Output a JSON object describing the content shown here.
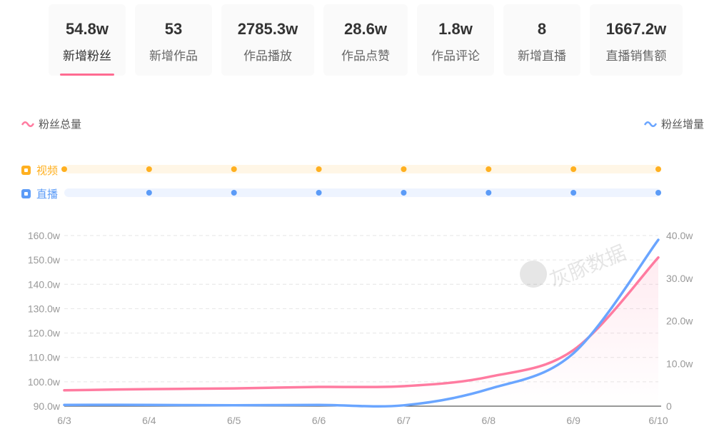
{
  "metrics": [
    {
      "value": "54.8w",
      "label": "新增粉丝",
      "active": true
    },
    {
      "value": "53",
      "label": "新增作品"
    },
    {
      "value": "2785.3w",
      "label": "作品播放"
    },
    {
      "value": "28.6w",
      "label": "作品点赞"
    },
    {
      "value": "1.8w",
      "label": "作品评论"
    },
    {
      "value": "8",
      "label": "新增直播"
    },
    {
      "value": "1667.2w",
      "label": "直播销售额"
    }
  ],
  "tracks": {
    "video": {
      "label": "视频",
      "color": "#ffb020",
      "dates": [
        "6/3",
        "6/4",
        "6/5",
        "6/6",
        "6/7",
        "6/8",
        "6/9",
        "6/10"
      ]
    },
    "live": {
      "label": "直播",
      "color": "#5b9bf7",
      "dates": [
        "6/4",
        "6/5",
        "6/6",
        "6/7",
        "6/8",
        "6/9",
        "6/10"
      ]
    }
  },
  "watermark": "灰豚数据",
  "chart_data": {
    "type": "line",
    "categories": [
      "6/3",
      "6/4",
      "6/5",
      "6/6",
      "6/7",
      "6/8",
      "6/9",
      "6/10"
    ],
    "series": [
      {
        "name": "粉丝总量",
        "axis": "left",
        "color": "#ff7ba0",
        "values": [
          96.5,
          97.0,
          97.3,
          97.9,
          98.2,
          102.0,
          113.0,
          151.0
        ]
      },
      {
        "name": "粉丝增量",
        "axis": "right",
        "color": "#6aa5ff",
        "values": [
          0.3,
          0.3,
          0.2,
          0.3,
          0.2,
          4.0,
          12.4,
          39.0
        ]
      }
    ],
    "y_left": {
      "range": [
        90,
        160
      ],
      "ticks": [
        "90.0w",
        "100.0w",
        "110.0w",
        "120.0w",
        "130.0w",
        "140.0w",
        "150.0w",
        "160.0w"
      ]
    },
    "y_right": {
      "range": [
        0,
        40
      ],
      "ticks": [
        "0",
        "10.0w",
        "20.0w",
        "30.0w",
        "40.0w"
      ]
    },
    "grid": true,
    "legend": "top-left and top-right"
  }
}
